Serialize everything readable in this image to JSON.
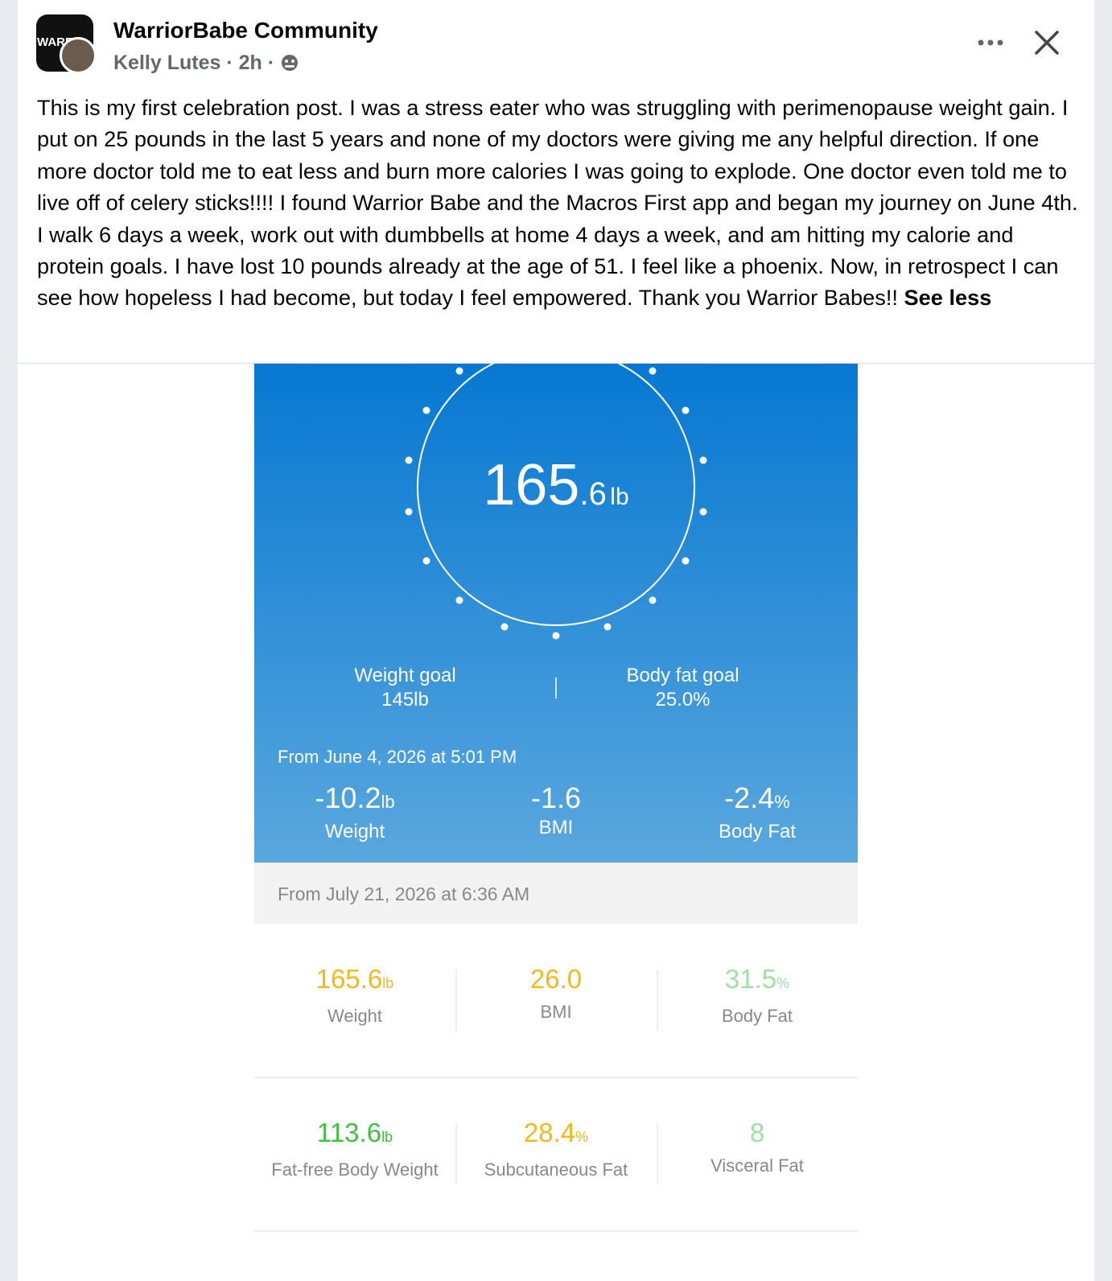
{
  "post": {
    "group_name": "WarriorBabe Community",
    "logo_text": "WARR",
    "author": "Kelly Lutes",
    "separator": "·",
    "time": "2h",
    "body": "This is my first celebration post. I was a stress eater who was struggling with perimenopause weight gain. I put on 25 pounds in the last 5 years and none of my doctors were giving me any helpful direction. If one more doctor told me to eat less and burn more calories I was going to explode. One doctor even told me to live off of celery sticks!!!! I found Warrior Babe and the Macros First app and began my journey on June 4th. I walk 6 days a week, work out with dumbbells at home 4 days a week, and am hitting my calorie and protein goals. I have lost 10 pounds already at the age of 51. I feel like a phoenix. Now, in retrospect I can see how hopeless I had become, but today I feel empowered. Thank you Warrior Babes!!",
    "see_less": "See less"
  },
  "scale": {
    "reading": {
      "integer": "165",
      "decimal": ".6",
      "unit": "lb"
    },
    "goals": [
      {
        "label": "Weight goal",
        "value": "145lb"
      },
      {
        "label": "Body fat goal",
        "value": "25.0%"
      }
    ],
    "since_label": "From June 4, 2026 at 5:01 PM",
    "changes": [
      {
        "value": "-10.2",
        "unit": "lb",
        "label": "Weight"
      },
      {
        "value": "-1.6",
        "unit": "",
        "label": "BMI"
      },
      {
        "value": "-2.4",
        "unit": "%",
        "label": "Body Fat"
      }
    ],
    "measured_label": "From July 21, 2026 at 6:36 AM",
    "metrics": [
      {
        "value": "165.6",
        "unit": "lb",
        "label": "Weight",
        "color": "#f2b81c"
      },
      {
        "value": "26.0",
        "unit": "",
        "label": "BMI",
        "color": "#f2b81c"
      },
      {
        "value": "31.5",
        "unit": "%",
        "label": "Body Fat",
        "color": "#9fe0a4"
      },
      {
        "value": "113.6",
        "unit": "lb",
        "label": "Fat-free Body Weight",
        "color": "#3cc23f"
      },
      {
        "value": "28.4",
        "unit": "%",
        "label": "Subcutaneous Fat",
        "color": "#f2b81c"
      },
      {
        "value": "8",
        "unit": "",
        "label": "Visceral Fat",
        "color": "#9fe0a4"
      }
    ]
  }
}
